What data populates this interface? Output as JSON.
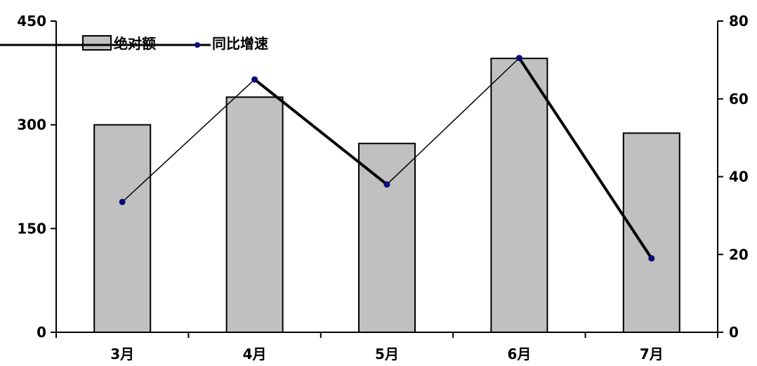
{
  "chart_data": {
    "type": "bar",
    "categories": [
      "3月",
      "4月",
      "5月",
      "6月",
      "7月"
    ],
    "series": [
      {
        "name": "绝对额",
        "type": "bar",
        "axis": "left",
        "values": [
          300,
          340,
          273,
          396,
          288
        ]
      },
      {
        "name": "同比增速",
        "type": "line",
        "axis": "right",
        "values": [
          33.5,
          65.0,
          38.0,
          70.5,
          19.0
        ]
      }
    ],
    "y_left": {
      "ticks": [
        "0",
        "150",
        "300",
        "450"
      ],
      "lim": [
        0,
        450
      ]
    },
    "y_right": {
      "ticks": [
        "0",
        "20",
        "40",
        "60",
        "80"
      ],
      "lim": [
        0,
        80
      ]
    },
    "legend_position": "top-left",
    "grid": false,
    "colors": {
      "bar_fill": "#c0c0c0",
      "bar_stroke": "#000000",
      "line": "#000000",
      "marker": "#0a0a7a"
    }
  }
}
